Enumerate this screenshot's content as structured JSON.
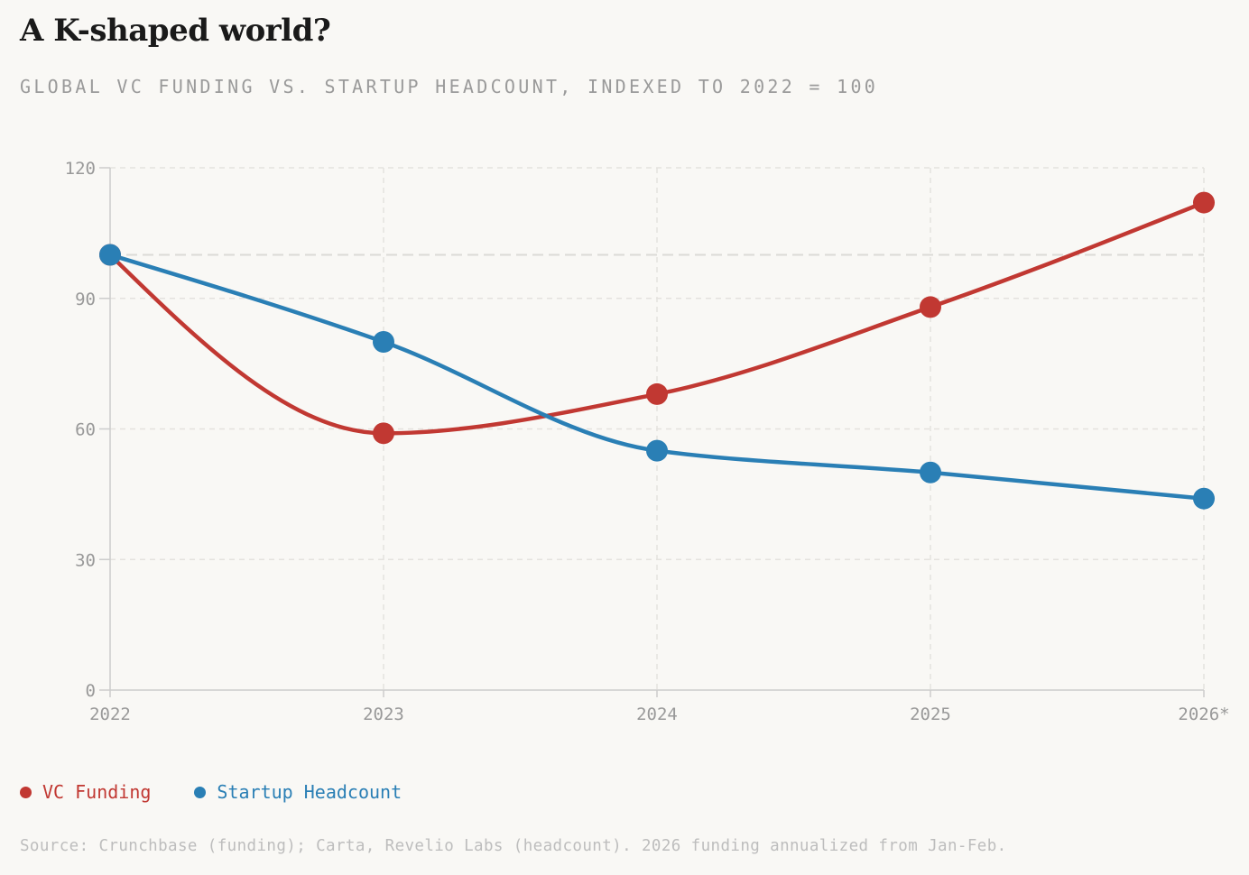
{
  "title": "A K-shaped world?",
  "subtitle": "GLOBAL VC FUNDING VS. STARTUP HEADCOUNT, INDEXED TO 2022 = 100",
  "source": "Source: Crunchbase (funding); Carta, Revelio Labs (headcount). 2026 funding annualized from Jan-Feb.",
  "chart_data": {
    "type": "line",
    "title": "A K-shaped world?",
    "subtitle": "GLOBAL VC FUNDING VS. STARTUP HEADCOUNT, INDEXED TO 2022 = 100",
    "categories": [
      "2022",
      "2023",
      "2024",
      "2025",
      "2026*"
    ],
    "ylim": [
      0,
      120
    ],
    "yticks": [
      0,
      30,
      60,
      90,
      120
    ],
    "reference_line": 100,
    "grid": true,
    "legend_position": "bottom-left",
    "series": [
      {
        "name": "VC Funding",
        "color": "#c13832",
        "values": [
          100,
          59,
          68,
          88,
          112
        ]
      },
      {
        "name": "Startup Headcount",
        "color": "#2a7fb5",
        "values": [
          100,
          80,
          55,
          50,
          44
        ]
      }
    ]
  }
}
